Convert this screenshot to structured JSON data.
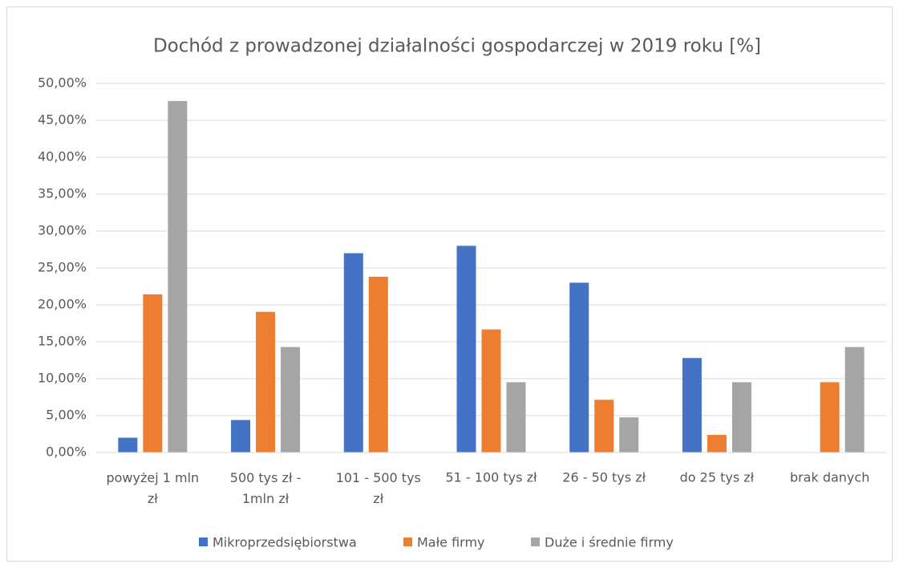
{
  "chart_data": {
    "type": "bar",
    "title": "Dochód z prowadzonej działalności gospodarczej w 2019 roku [%]",
    "categories": [
      "powyżej 1 mln zł",
      "500 tys zł - 1mln zł",
      "101 - 500 tys zł",
      "51 - 100 tys zł",
      "26 - 50 tys zł",
      "do 25 tys zł",
      "brak danych"
    ],
    "series": [
      {
        "name": "Mikroprzedsiębiorstwa",
        "color": "#4472c4",
        "values": [
          2.0,
          4.4,
          27.0,
          28.0,
          23.0,
          12.8,
          0
        ]
      },
      {
        "name": "Małe firmy",
        "color": "#ed7d31",
        "values": [
          21.43,
          19.05,
          23.81,
          16.67,
          7.14,
          2.38,
          9.52
        ]
      },
      {
        "name": "Duże i średnie firmy",
        "color": "#a5a5a5",
        "values": [
          47.62,
          14.29,
          0,
          9.52,
          4.76,
          9.52,
          14.29
        ]
      }
    ],
    "ylim": [
      0,
      50
    ],
    "yticks": [
      {
        "value": 0,
        "label": "0,00%"
      },
      {
        "value": 5,
        "label": "5,00%"
      },
      {
        "value": 10,
        "label": "10,00%"
      },
      {
        "value": 15,
        "label": "15,00%"
      },
      {
        "value": 20,
        "label": "20,00%"
      },
      {
        "value": 25,
        "label": "25,00%"
      },
      {
        "value": 30,
        "label": "30,00%"
      },
      {
        "value": 35,
        "label": "35,00%"
      },
      {
        "value": 40,
        "label": "40,00%"
      },
      {
        "value": 45,
        "label": "45,00%"
      },
      {
        "value": 50,
        "label": "50,00%"
      }
    ],
    "grid": true,
    "legend": "bottom"
  }
}
